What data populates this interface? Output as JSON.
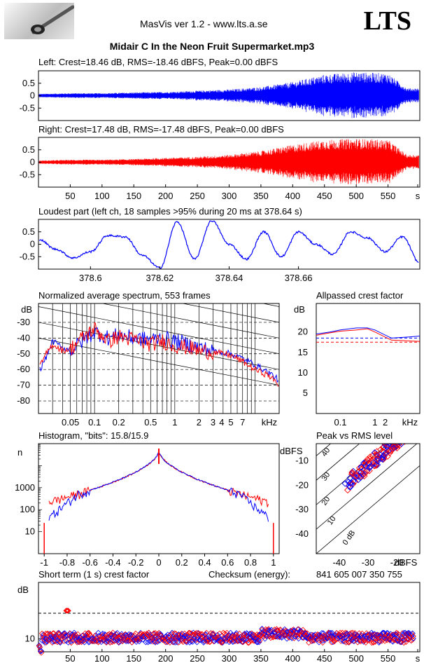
{
  "app": {
    "title": "MasVis ver 1.2 - www.lts.a.se",
    "brand": "LTS",
    "logo_icon": "tonearm-icon"
  },
  "file_title": "Midair C In the Neon Fruit Supermarket.mp3",
  "colors": {
    "left": "#0000ff",
    "right": "#ff0000"
  },
  "chart_data": [
    {
      "id": "wave-left",
      "type": "line",
      "title": "Left: Crest=18.46 dB, RMS=-18.46 dBFS, Peak=0.00 dBFS",
      "yticks": [
        "0.5",
        "0",
        "-0.5"
      ],
      "ylim": [
        -1,
        1
      ],
      "xlim": [
        0,
        600
      ],
      "color": "#0000ff",
      "envelope_x": [
        0,
        50,
        100,
        150,
        200,
        250,
        300,
        350,
        400,
        450,
        500,
        550,
        580
      ],
      "envelope_y": [
        0.07,
        0.1,
        0.1,
        0.13,
        0.15,
        0.2,
        0.25,
        0.35,
        0.55,
        0.85,
        0.95,
        0.9,
        0.3
      ]
    },
    {
      "id": "wave-right",
      "type": "line",
      "title": "Right: Crest=17.48 dB, RMS=-17.48 dBFS, Peak=0.00 dBFS",
      "yticks": [
        "0.5",
        "0",
        "-0.5"
      ],
      "ylim": [
        -1,
        1
      ],
      "xlim": [
        0,
        600
      ],
      "color": "#ff0000",
      "xticks": [
        "50",
        "100",
        "150",
        "200",
        "250",
        "300",
        "350",
        "400",
        "450",
        "500",
        "550",
        "s"
      ],
      "envelope_x": [
        0,
        50,
        100,
        150,
        200,
        250,
        300,
        350,
        400,
        450,
        500,
        550,
        580
      ],
      "envelope_y": [
        0.07,
        0.1,
        0.1,
        0.13,
        0.18,
        0.22,
        0.3,
        0.45,
        0.7,
        0.9,
        0.95,
        0.9,
        0.3
      ]
    },
    {
      "id": "loudest",
      "type": "line",
      "title": "Loudest part (left  ch, 18 samples >95% during 20 ms at 378.64 s)",
      "yticks": [
        "0.5",
        "0",
        "-0.5"
      ],
      "xticks": [
        "378.6",
        "378.62",
        "378.64",
        "378.66"
      ],
      "xlim": [
        378.585,
        378.695
      ],
      "ylim": [
        -1,
        1
      ],
      "color": "#0000ff",
      "x": [
        378.585,
        378.59,
        378.595,
        378.6,
        378.605,
        378.61,
        378.615,
        378.62,
        378.625,
        378.63,
        378.635,
        378.64,
        378.645,
        378.65,
        378.655,
        378.66,
        378.665,
        378.67,
        378.675,
        378.68,
        378.685,
        378.69,
        378.695
      ],
      "y": [
        0.2,
        -0.2,
        -0.55,
        -0.3,
        0.35,
        0.3,
        -0.45,
        -0.95,
        0.9,
        -0.6,
        0.95,
        0.0,
        -0.6,
        0.5,
        -0.5,
        0.5,
        0.0,
        -0.4,
        0.5,
        0.25,
        -0.3,
        0.3,
        -0.75
      ]
    },
    {
      "id": "spectrum",
      "type": "line",
      "title": "Normalized average spectrum, 553 frames",
      "ylabel": "dB",
      "yticks": [
        "-30",
        "-40",
        "-50",
        "-60",
        "-70",
        "-80"
      ],
      "xticks": [
        "0.05",
        "0.1",
        "0.2",
        "0.5",
        "1",
        "2",
        "3",
        "4",
        "5",
        "7",
        "kHz"
      ],
      "xscale": "log",
      "xlim": [
        0.02,
        20
      ],
      "ylim": [
        -88,
        -18
      ],
      "series": [
        {
          "color": "#0000ff",
          "x": [
            0.02,
            0.025,
            0.03,
            0.04,
            0.05,
            0.07,
            0.1,
            0.15,
            0.2,
            0.3,
            0.5,
            0.7,
            1,
            1.5,
            2,
            3,
            5,
            7,
            10,
            15,
            20
          ],
          "y": [
            -62,
            -52,
            -42,
            -46,
            -48,
            -42,
            -36,
            -40,
            -38,
            -40,
            -41,
            -40,
            -42,
            -44,
            -46,
            -48,
            -50,
            -53,
            -57,
            -62,
            -67
          ]
        },
        {
          "color": "#ff0000",
          "x": [
            0.02,
            0.025,
            0.03,
            0.04,
            0.05,
            0.07,
            0.1,
            0.15,
            0.2,
            0.3,
            0.5,
            0.7,
            1,
            1.5,
            2,
            3,
            5,
            7,
            10,
            15,
            20
          ],
          "y": [
            -60,
            -50,
            -44,
            -48,
            -47,
            -40,
            -34,
            -42,
            -39,
            -41,
            -44,
            -42,
            -45,
            -46,
            -48,
            -49,
            -51,
            -55,
            -60,
            -64,
            -70
          ]
        }
      ]
    },
    {
      "id": "allpassed",
      "type": "line",
      "title": "Allpassed crest factor",
      "ylabel": "dB",
      "yticks": [
        "20",
        "15",
        "10",
        "5"
      ],
      "xticks": [
        "0.1",
        "1",
        "2",
        "kHz"
      ],
      "xscale": "log",
      "xlim": [
        0.02,
        20
      ],
      "ylim": [
        0,
        27
      ],
      "series": [
        {
          "color": "#0000ff",
          "x": [
            0.02,
            0.05,
            0.1,
            0.3,
            0.6,
            1,
            3,
            10,
            20
          ],
          "y": [
            19.5,
            20,
            20.5,
            21,
            21,
            20.5,
            18.5,
            18.8,
            19
          ]
        },
        {
          "color": "#ff0000",
          "x": [
            0.02,
            0.05,
            0.1,
            0.3,
            0.6,
            1,
            3,
            10,
            20
          ],
          "y": [
            19.2,
            19.8,
            20.2,
            20.5,
            20.8,
            20,
            18,
            17.8,
            17.7
          ]
        }
      ],
      "dashed": [
        {
          "color": "#0000ff",
          "y": 18.5
        },
        {
          "color": "#ff0000",
          "y": 17.5
        }
      ]
    },
    {
      "id": "histogram",
      "type": "line",
      "title": "Histogram, \"bits\": 15.8/15.9",
      "ylabel": "n",
      "yticks": [
        "1000",
        "100",
        "10"
      ],
      "xticks": [
        "-1",
        "-0.8",
        "-0.6",
        "-0.4",
        "-0.2",
        "0",
        "0.2",
        "0.4",
        "0.6",
        "0.8",
        "1"
      ],
      "xlim": [
        -1.05,
        1.05
      ],
      "yscale": "log",
      "ylim": [
        1,
        100000
      ]
    },
    {
      "id": "peak-rms",
      "type": "scatter",
      "title": "Peak vs RMS level",
      "ylabel": "dBFS",
      "xlabel": "dBFS",
      "yticks": [
        "-10",
        "-20",
        "-30",
        "-40"
      ],
      "xticks": [
        "-40",
        "-30",
        "-20"
      ],
      "xlim": [
        -48,
        -12
      ],
      "ylim": [
        -48,
        -3
      ],
      "diagonal_labels": [
        "40",
        "30",
        "20",
        "10",
        "0 dB"
      ]
    },
    {
      "id": "crest-short",
      "type": "scatter",
      "title": "Short term (1 s) crest factor",
      "ylabel": "dB",
      "yticks": [
        "10"
      ],
      "xticks": [
        "50",
        "100",
        "150",
        "200",
        "250",
        "300",
        "350",
        "400",
        "450",
        "500",
        "550",
        "s"
      ],
      "xlim": [
        0,
        600
      ],
      "ylim": [
        5,
        32
      ],
      "dashed_y": 20
    }
  ],
  "checksum_label": "Checksum (energy):",
  "checksum_value": "841 605 007 350 755"
}
